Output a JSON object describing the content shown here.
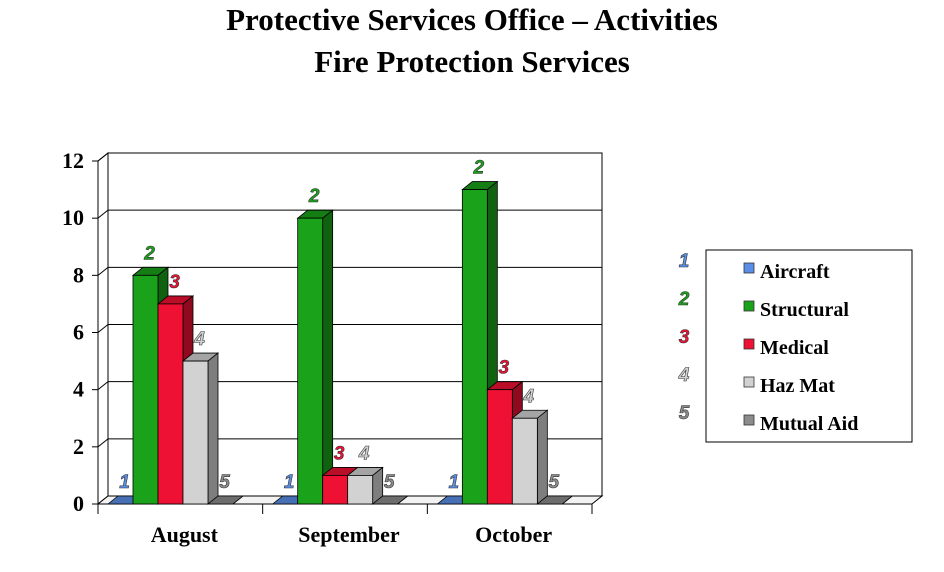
{
  "chart_data": {
    "type": "bar",
    "title": "Protective Services Office – Activities",
    "subtitle": "Fire Protection Services",
    "categories": [
      "August",
      "September",
      "October"
    ],
    "ylim": [
      0,
      12
    ],
    "yticks": [
      "0",
      "2",
      "4",
      "6",
      "8",
      "10",
      "12"
    ],
    "grid": true,
    "legend_position": "right",
    "series": [
      {
        "name": "Aircraft",
        "marker": "1",
        "color": "#5b8ee6",
        "values": [
          0,
          0,
          0
        ]
      },
      {
        "name": "Structural",
        "marker": "2",
        "color": "#1aa21a",
        "values": [
          8,
          10,
          11
        ]
      },
      {
        "name": "Medical",
        "marker": "3",
        "color": "#ee1133",
        "values": [
          7,
          1,
          4
        ]
      },
      {
        "name": "Haz Mat",
        "marker": "4",
        "color": "#d2d2d2",
        "values": [
          5,
          1,
          3
        ]
      },
      {
        "name": "Mutual Aid",
        "marker": "5",
        "color": "#8c8c8c",
        "values": [
          0,
          0,
          0
        ]
      }
    ]
  }
}
